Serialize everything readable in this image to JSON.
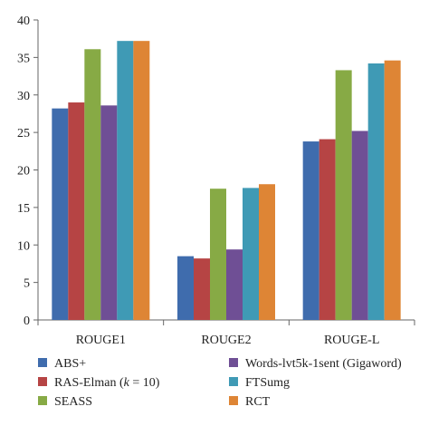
{
  "chart_data": {
    "type": "bar",
    "title": "",
    "xlabel": "",
    "ylabel": "",
    "ylim": [
      0,
      40
    ],
    "yticks": [
      0,
      5,
      10,
      15,
      20,
      25,
      30,
      35,
      40
    ],
    "categories": [
      "ROUGE1",
      "ROUGE2",
      "ROUGE-L"
    ],
    "grid": false,
    "legend_position": "bottom",
    "series": [
      {
        "name": "ABS+",
        "color": "#3f6cad",
        "values": [
          28.2,
          8.5,
          23.8
        ]
      },
      {
        "name": "RAS-Elman",
        "name_suffix": " (k = 10)",
        "name_prefix_paren": "RAS-Elman (",
        "name_k": "k",
        "name_after_k": " = 10)",
        "color": "#b64444",
        "values": [
          29.0,
          8.2,
          24.1
        ]
      },
      {
        "name": "SEASS",
        "color": "#87aa45",
        "values": [
          36.1,
          17.5,
          33.3
        ]
      },
      {
        "name": "Words-lvt5k-1sent (Gigaword)",
        "color": "#6f4f95",
        "values": [
          28.6,
          9.4,
          25.2
        ]
      },
      {
        "name": "FTSumg",
        "color": "#3f9ab5",
        "values": [
          37.2,
          17.6,
          34.2
        ]
      },
      {
        "name": "RCT",
        "color": "#de8535",
        "values": [
          37.2,
          18.1,
          34.6
        ]
      }
    ]
  }
}
